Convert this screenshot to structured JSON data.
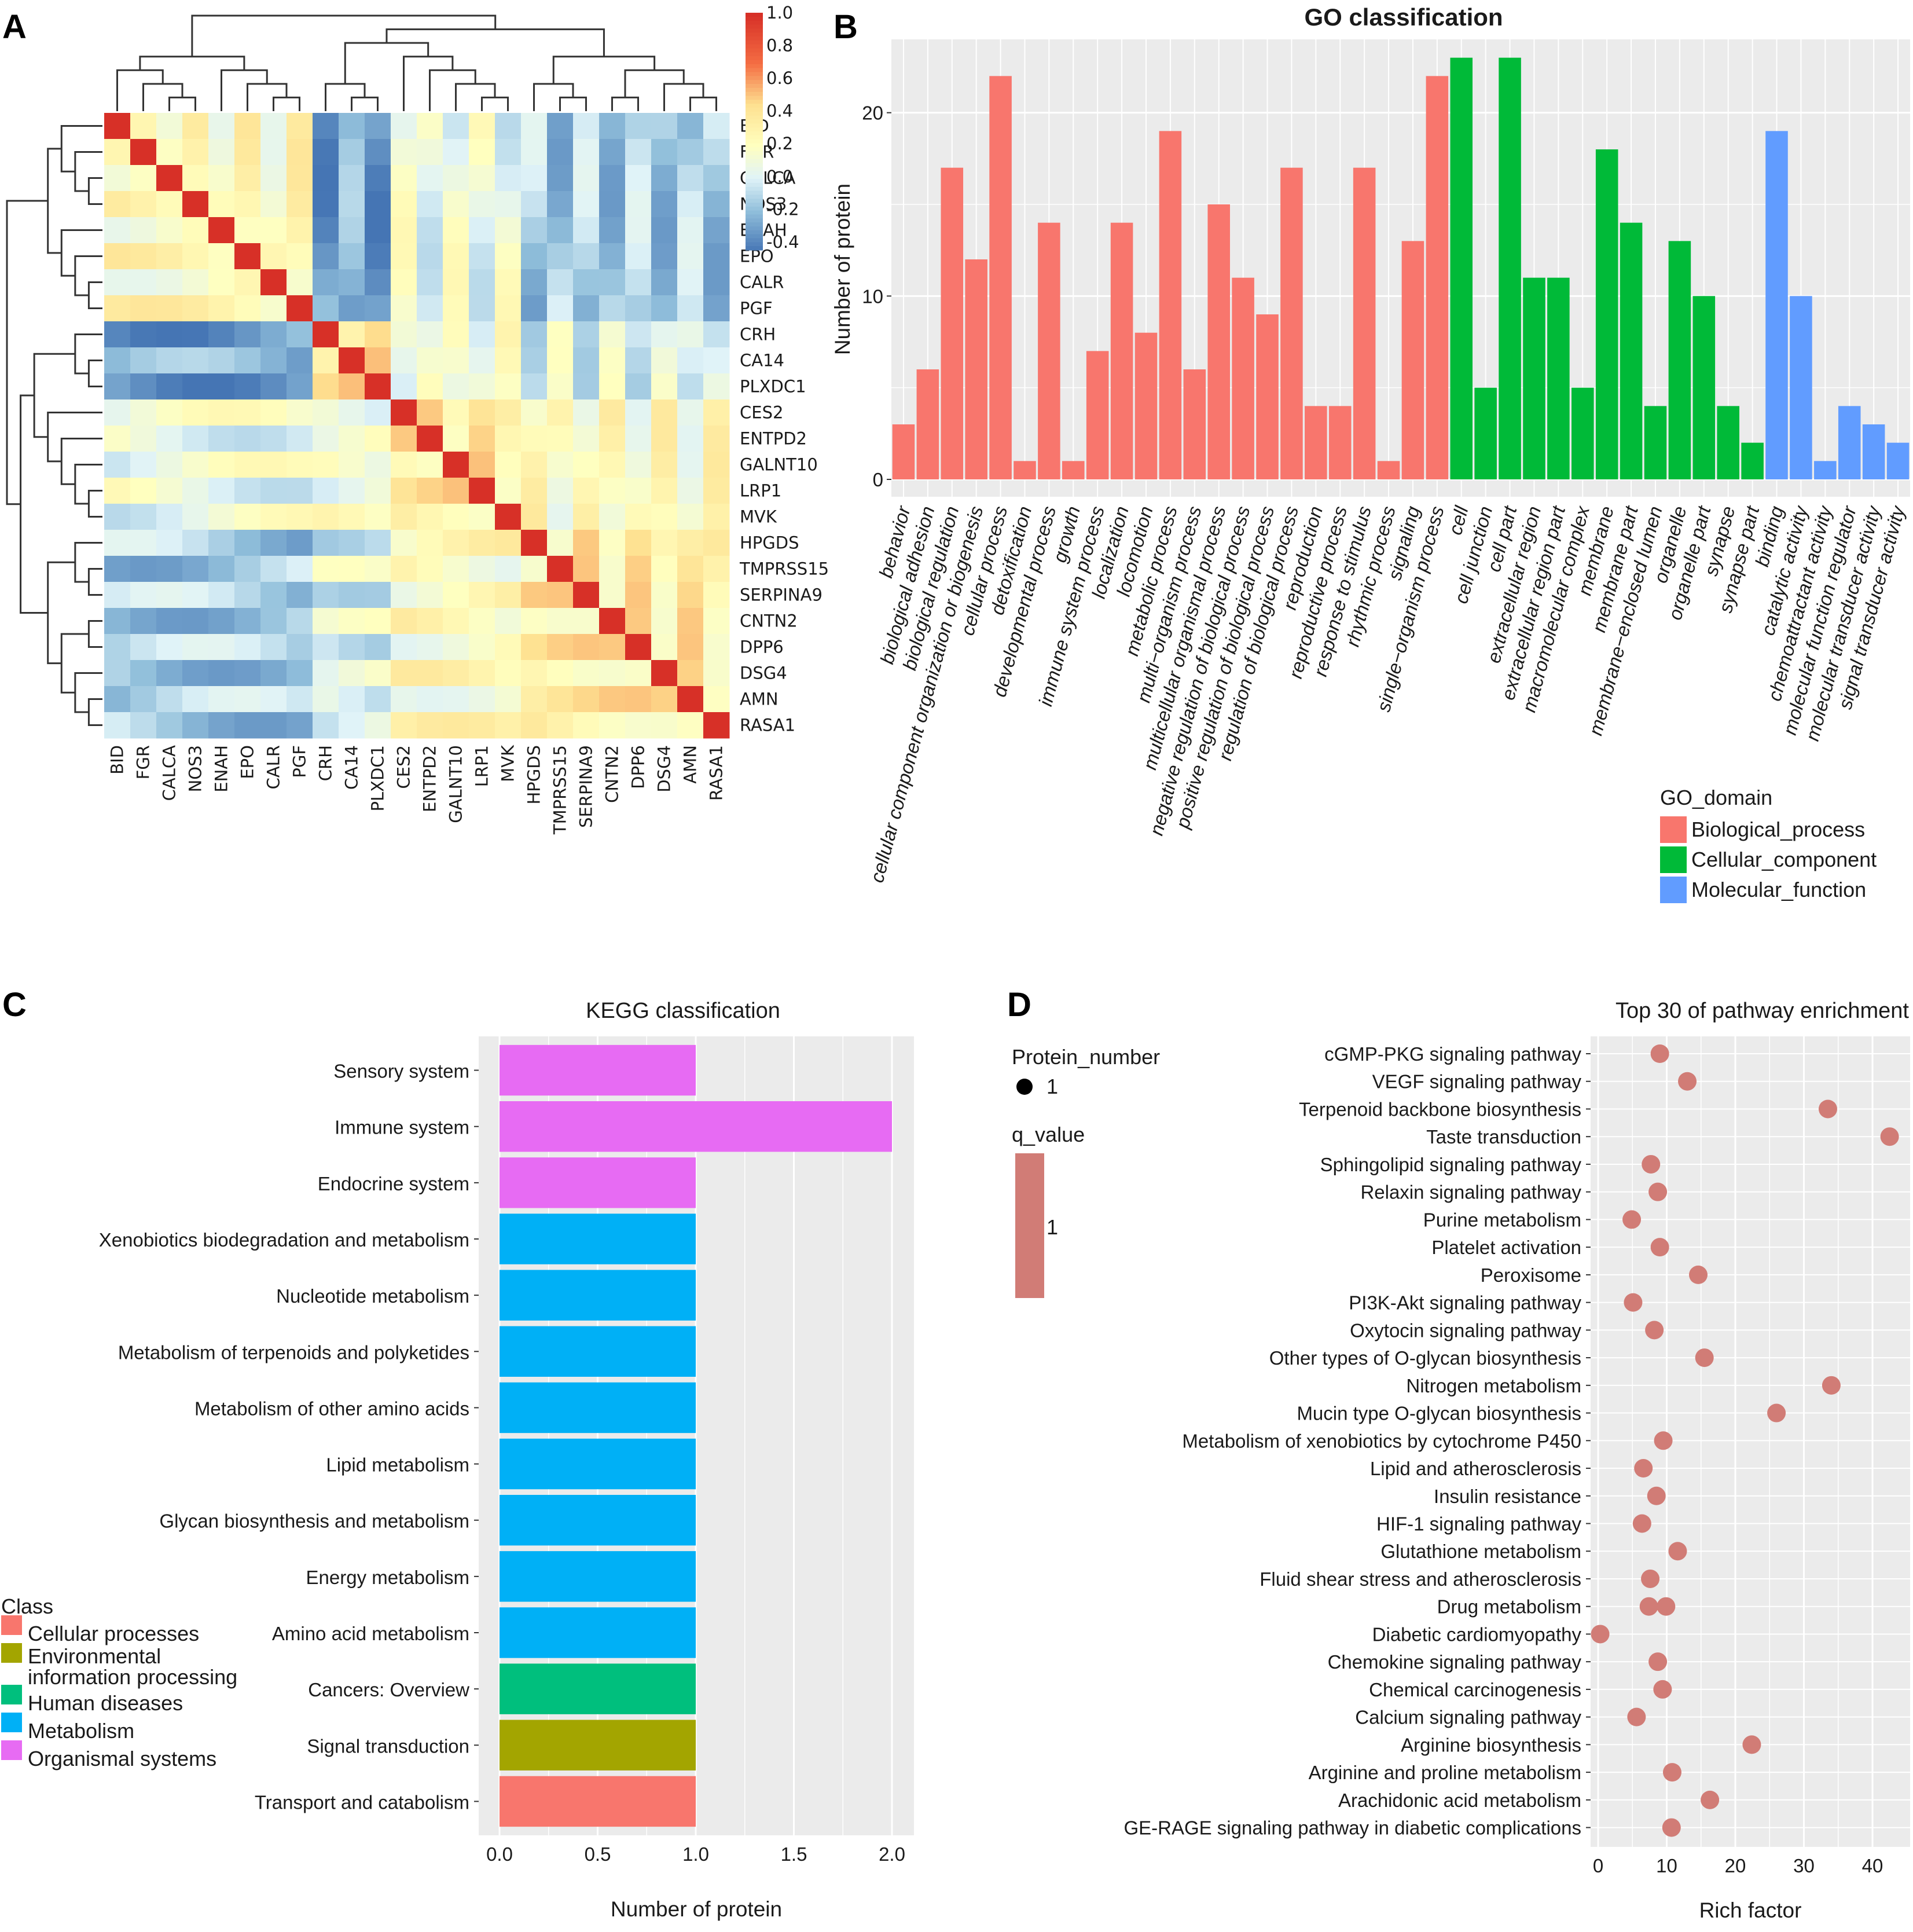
{
  "panels": {
    "a": {
      "letter": "A"
    },
    "b": {
      "letter": "B"
    },
    "c": {
      "letter": "C"
    },
    "d": {
      "letter": "D"
    }
  },
  "chart_data": [
    {
      "panel": "A",
      "type": "heatmap",
      "title": "",
      "labels": [
        "BID",
        "FGR",
        "CALCA",
        "NOS3",
        "ENAH",
        "EPO",
        "CALR",
        "PGF",
        "CRH",
        "CA14",
        "PLXDC1",
        "CES2",
        "ENTPD2",
        "GALNT10",
        "LRP1",
        "MVK",
        "HPGDS",
        "TMPRSS15",
        "SERPINA9",
        "CNTN2",
        "DPP6",
        "DSG4",
        "AMN",
        "RASA1"
      ],
      "groups": [
        [
          0,
          1,
          2,
          3,
          4,
          5,
          6,
          7
        ],
        [
          8,
          9,
          10
        ],
        [
          11,
          12,
          13,
          14,
          15
        ],
        [
          16,
          17,
          18,
          19,
          20,
          21,
          22,
          23
        ]
      ],
      "diagonal": 1.0,
      "colorbar": {
        "ticks": [
          "1.0",
          "0.8",
          "0.6",
          "0.4",
          "0.2",
          "0.0",
          "-0.2",
          "-0.4"
        ],
        "range": [
          -0.45,
          1.0
        ]
      }
    },
    {
      "panel": "B",
      "type": "bar",
      "title": "GO classification",
      "ylabel": "Number of protein",
      "ylim": [
        0,
        24
      ],
      "yticks": [
        "0",
        "10",
        "20"
      ],
      "legend_title": "GO_domain",
      "domains": [
        "Biological_process",
        "Cellular_component",
        "Molecular_function"
      ],
      "colors": {
        "Biological_process": "#F8766D",
        "Cellular_component": "#00BA38",
        "Molecular_function": "#619CFF"
      },
      "categories": [
        "behavior",
        "biological adhesion",
        "biological regulation",
        "cellular component organization or biogenesis",
        "cellular process",
        "detoxification",
        "developmental process",
        "growth",
        "immune system process",
        "localization",
        "locomotion",
        "metabolic process",
        "multi−organism process",
        "multicellular organismal process",
        "negative regulation of biological process",
        "positive regulation of biological process",
        "regulation of biological process",
        "reproduction",
        "reproductive process",
        "response to stimulus",
        "rhythmic process",
        "signaling",
        "single−organism process",
        "cell",
        "cell junction",
        "cell part",
        "extracellular region",
        "extracellular region part",
        "macromolecular complex",
        "membrane",
        "membrane part",
        "membrane−enclosed lumen",
        "organelle",
        "organelle part",
        "synapse",
        "synapse part",
        "binding",
        "catalytic activity",
        "chemoattractant activity",
        "molecular function regulator",
        "molecular transducer activity",
        "signal transducer activity"
      ],
      "values": [
        3,
        6,
        17,
        12,
        22,
        1,
        14,
        1,
        7,
        14,
        8,
        19,
        6,
        15,
        11,
        9,
        17,
        4,
        4,
        17,
        1,
        13,
        22,
        23,
        5,
        23,
        11,
        11,
        5,
        18,
        14,
        4,
        13,
        10,
        4,
        2,
        19,
        10,
        1,
        4,
        3,
        2
      ],
      "domain_index": [
        0,
        0,
        0,
        0,
        0,
        0,
        0,
        0,
        0,
        0,
        0,
        0,
        0,
        0,
        0,
        0,
        0,
        0,
        0,
        0,
        0,
        0,
        0,
        1,
        1,
        1,
        1,
        1,
        1,
        1,
        1,
        1,
        1,
        1,
        1,
        1,
        2,
        2,
        2,
        2,
        2,
        2
      ]
    },
    {
      "panel": "C",
      "type": "bar",
      "orientation": "horizontal",
      "title": "KEGG classification",
      "xlabel": "Number of protein",
      "xlim": [
        0,
        2.1
      ],
      "xticks": [
        "0.0",
        "0.5",
        "1.0",
        "1.5",
        "2.0"
      ],
      "legend_title": "Class",
      "classes": [
        "Cellular processes",
        "Environmental information processing",
        "Human diseases",
        "Metabolism",
        "Organismal systems"
      ],
      "colors": {
        "Cellular processes": "#F8766D",
        "Environmental information processing": "#A3A500",
        "Human diseases": "#00BF7D",
        "Metabolism": "#00B0F6",
        "Organismal systems": "#E76BF3"
      },
      "categories": [
        "Sensory system",
        "Immune system",
        "Endocrine system",
        "Xenobiotics biodegradation and metabolism",
        "Nucleotide metabolism",
        "Metabolism of terpenoids and polyketides",
        "Metabolism of other amino acids",
        "Lipid metabolism",
        "Glycan biosynthesis and metabolism",
        "Energy metabolism",
        "Amino acid metabolism",
        "Cancers: Overview",
        "Signal transduction",
        "Transport and catabolism"
      ],
      "values": [
        1,
        2,
        1,
        1,
        1,
        1,
        1,
        1,
        1,
        1,
        1,
        1,
        1,
        1
      ],
      "class_index": [
        4,
        4,
        4,
        3,
        3,
        3,
        3,
        3,
        3,
        3,
        3,
        2,
        1,
        0
      ]
    },
    {
      "panel": "D",
      "type": "scatter",
      "title": "Top 30 of pathway enrichment",
      "xlabel": "Rich factor",
      "xlim": [
        -0.5,
        42.5
      ],
      "xticks": [
        0,
        10,
        20,
        30,
        40
      ],
      "size_legend_title": "Protein_number",
      "size_legend_value": "1",
      "color_legend_title": "q_value",
      "color_legend_value": "1",
      "point_color": "#D17C76",
      "pathways": [
        "cGMP-PKG signaling pathway",
        "VEGF signaling pathway",
        "Terpenoid backbone biosynthesis",
        "Taste transduction",
        "Sphingolipid signaling pathway",
        "Relaxin signaling pathway",
        "Purine metabolism",
        "Platelet activation",
        "Peroxisome",
        "PI3K-Akt signaling pathway",
        "Oxytocin signaling pathway",
        "Other types of O-glycan biosynthesis",
        "Nitrogen metabolism",
        "Mucin type O-glycan biosynthesis",
        "Metabolism of xenobiotics by cytochrome P450",
        "Lipid and atherosclerosis",
        "Insulin resistance",
        "HIF-1 signaling pathway",
        "Glutathione metabolism",
        "Fluid shear stress and atherosclerosis",
        "Drug metabolism",
        "Diabetic cardiomyopathy",
        "Chemokine signaling pathway",
        "Chemical carcinogenesis",
        "Calcium signaling pathway",
        "Arginine biosynthesis",
        "Arginine and proline metabolism",
        "Arachidonic acid metabolism",
        "GE-RAGE signaling pathway in diabetic complications"
      ],
      "points": [
        [
          0,
          9
        ],
        [
          1,
          13
        ],
        [
          2,
          33.5
        ],
        [
          3,
          42.5
        ],
        [
          4,
          7.7
        ],
        [
          5,
          8.7
        ],
        [
          6,
          4.9
        ],
        [
          7,
          9
        ],
        [
          8,
          14.6
        ],
        [
          9,
          5.1
        ],
        [
          10,
          8.2
        ],
        [
          11,
          15.5
        ],
        [
          12,
          34
        ],
        [
          13,
          26
        ],
        [
          14,
          9.5
        ],
        [
          15,
          6.6
        ],
        [
          16,
          8.5
        ],
        [
          17,
          6.4
        ],
        [
          18,
          11.6
        ],
        [
          19,
          7.6
        ],
        [
          20,
          7.4
        ],
        [
          20,
          9.9
        ],
        [
          21,
          0.3
        ],
        [
          22,
          8.7
        ],
        [
          23,
          9.4
        ],
        [
          24,
          5.6
        ],
        [
          25,
          22.4
        ],
        [
          26,
          10.8
        ],
        [
          27,
          16.3
        ],
        [
          28,
          10.7
        ]
      ]
    }
  ]
}
